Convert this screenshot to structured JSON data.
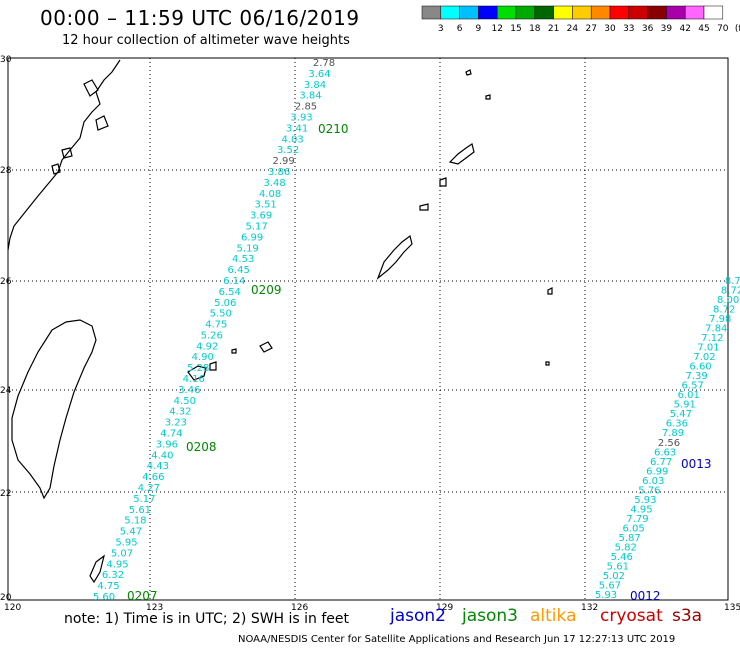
{
  "title": "00:00 – 11:59 UTC 06/16/2019",
  "subtitle": "12 hour collection of altimeter wave heights",
  "legend": {
    "labels": [
      "3",
      "6",
      "9",
      "12",
      "15",
      "18",
      "21",
      "24",
      "27",
      "30",
      "33",
      "36",
      "39",
      "42",
      "45",
      "70",
      "(ft)"
    ],
    "colors": [
      "#888888",
      "#00ffff",
      "#00bfff",
      "#0000ff",
      "#00dd00",
      "#00aa00",
      "#006600",
      "#ffff00",
      "#ffcc00",
      "#ff8800",
      "#ff0000",
      "#cc0000",
      "#880000",
      "#aa00aa",
      "#ff66ff",
      "#ffffff"
    ]
  },
  "axes": {
    "lon_labels": [
      "120",
      "123",
      "126",
      "129",
      "132",
      "135"
    ],
    "lat_labels": [
      "30",
      "28",
      "26",
      "24",
      "22",
      "20"
    ]
  },
  "tracks": [
    {
      "id_labels": [
        "0210",
        "0209",
        "0208",
        "0207"
      ],
      "id_color": "#008800",
      "values": [
        "2.78",
        "3.64",
        "3.84",
        "3.84",
        "2.85",
        "3.93",
        "3.41",
        "4.03",
        "3.52",
        "2.99",
        "3.86",
        "3.48",
        "4.08",
        "3.51",
        "3.69",
        "5.17",
        "6.99",
        "5.19",
        "4.53",
        "6.45",
        "6.14",
        "6.54",
        "5.06",
        "5.50",
        "4.75",
        "5.26",
        "4.92",
        "4.90",
        "5.28",
        "4.16",
        "3.46",
        "4.50",
        "4.32",
        "3.23",
        "4.74",
        "3.96",
        "4.40",
        "4.43",
        "4.66",
        "4.27",
        "5.17",
        "5.61",
        "5.18",
        "5.47",
        "5.95",
        "5.07",
        "4.95",
        "6.32",
        "4.75",
        "5.60"
      ]
    },
    {
      "id_labels": [
        "0013",
        "0012"
      ],
      "id_color": "#0000cc",
      "values": [
        "8.73",
        "8.72",
        "8.00",
        "8.72",
        "7.98",
        "7.84",
        "7.12",
        "7.01",
        "7.02",
        "6.60",
        "7.39",
        "6.57",
        "6.01",
        "5.91",
        "5.47",
        "6.36",
        "7.89",
        "2.56",
        "6.63",
        "6.77",
        "6.99",
        "6.03",
        "5.76",
        "5.93",
        "4.95",
        "7.79",
        "6.05",
        "5.87",
        "5.82",
        "5.46",
        "5.61",
        "5.02",
        "5.67",
        "5.93"
      ]
    }
  ],
  "footer": {
    "note": "note:  1) Time is in UTC;  2) SWH is in feet",
    "satellites": [
      {
        "name": "jason2",
        "color": "#0000cc"
      },
      {
        "name": "jason3",
        "color": "#008800"
      },
      {
        "name": "altika",
        "color": "#ff9900"
      },
      {
        "name": "cryosat",
        "color": "#cc0000"
      },
      {
        "name": "s3a",
        "color": "#990000"
      }
    ],
    "credit": "NOAA/NESDIS Center for Satellite Applications and Research    Jun 17 12:27:13 UTC 2019"
  }
}
